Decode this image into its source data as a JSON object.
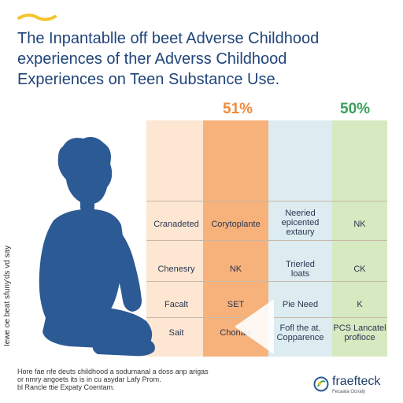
{
  "title": {
    "line1": "The Inpantablle off beet Adverse Childhood",
    "line2": "experiences of  ther Adverss Childhood",
    "line3": "Experiences on Teen Substance Use."
  },
  "percentages": {
    "left": "51%",
    "right": "50%"
  },
  "colors": {
    "accent_orange": "#f08a3c",
    "accent_green": "#3aa05a",
    "title": "#21457a",
    "figure": "#2c5a94"
  },
  "table": {
    "rows": [
      [
        "Cranadeted",
        "Corytoplante",
        "Neeried\nepicented\nextaury",
        "NK"
      ],
      [
        "Chenesry",
        "NK",
        "Trierled\nloats",
        "CK"
      ],
      [
        "Facalt",
        "SET",
        "Pie Need",
        "K"
      ],
      [
        "Sait",
        "Chonais",
        "Fofl the at.\nCopparence",
        "PCS Lancatel\nprofioce"
      ]
    ]
  },
  "side_text": "Iewe oe beat  sfuny'ds vd say",
  "footer": {
    "line1": "Hore fae nfe deuts childhood a sodumanal a doss anp arigas",
    "line2": "or nmry angoets its is in cu asydar Lafy Prom.",
    "line3": "bl Rancle ttie Expaty Coentam."
  },
  "logo": {
    "name": "fraefteck",
    "tagline": "Fecaata Ocnaly",
    "icon": "logo-mark-icon"
  }
}
